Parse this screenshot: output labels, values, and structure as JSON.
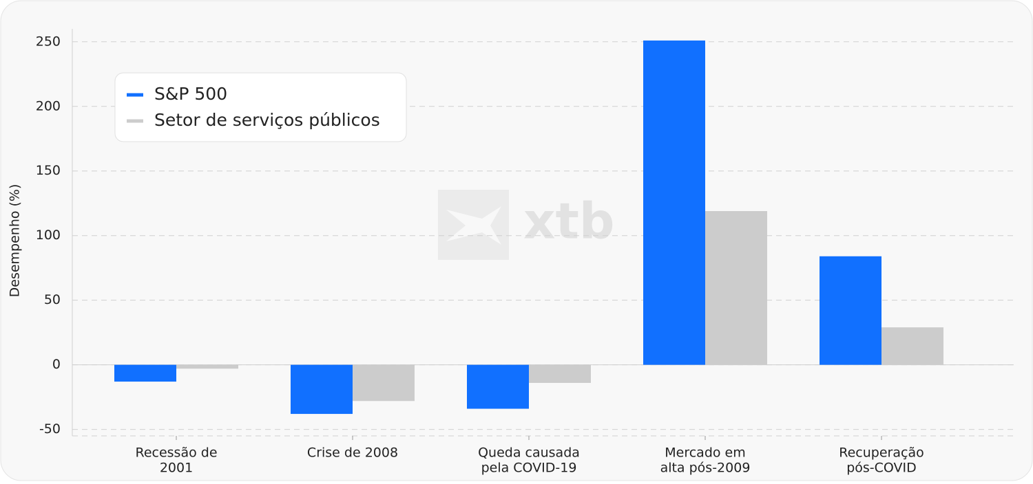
{
  "chart_data": {
    "type": "bar",
    "ylabel": "Desempenho (%)",
    "watermark": "xtb",
    "categories": [
      [
        "Recessão de",
        "2001"
      ],
      [
        "Crise de 2008"
      ],
      [
        "Queda causada",
        "pela COVID-19"
      ],
      [
        "Mercado em",
        "alta pós-2009"
      ],
      [
        "Recuperação",
        "pós-COVID"
      ]
    ],
    "series": [
      {
        "name": "S&P 500",
        "color": "#1170ff",
        "values": [
          -13,
          -38,
          -34,
          251,
          84
        ]
      },
      {
        "name": "Setor de serviços públicos",
        "color": "#cccccc",
        "values": [
          -3,
          -28,
          -14,
          119,
          29
        ]
      }
    ],
    "ylim": [
      -55,
      260
    ],
    "yticks": [
      -50,
      0,
      50,
      100,
      150,
      200,
      250
    ],
    "grid": true,
    "legend": "upper left"
  }
}
